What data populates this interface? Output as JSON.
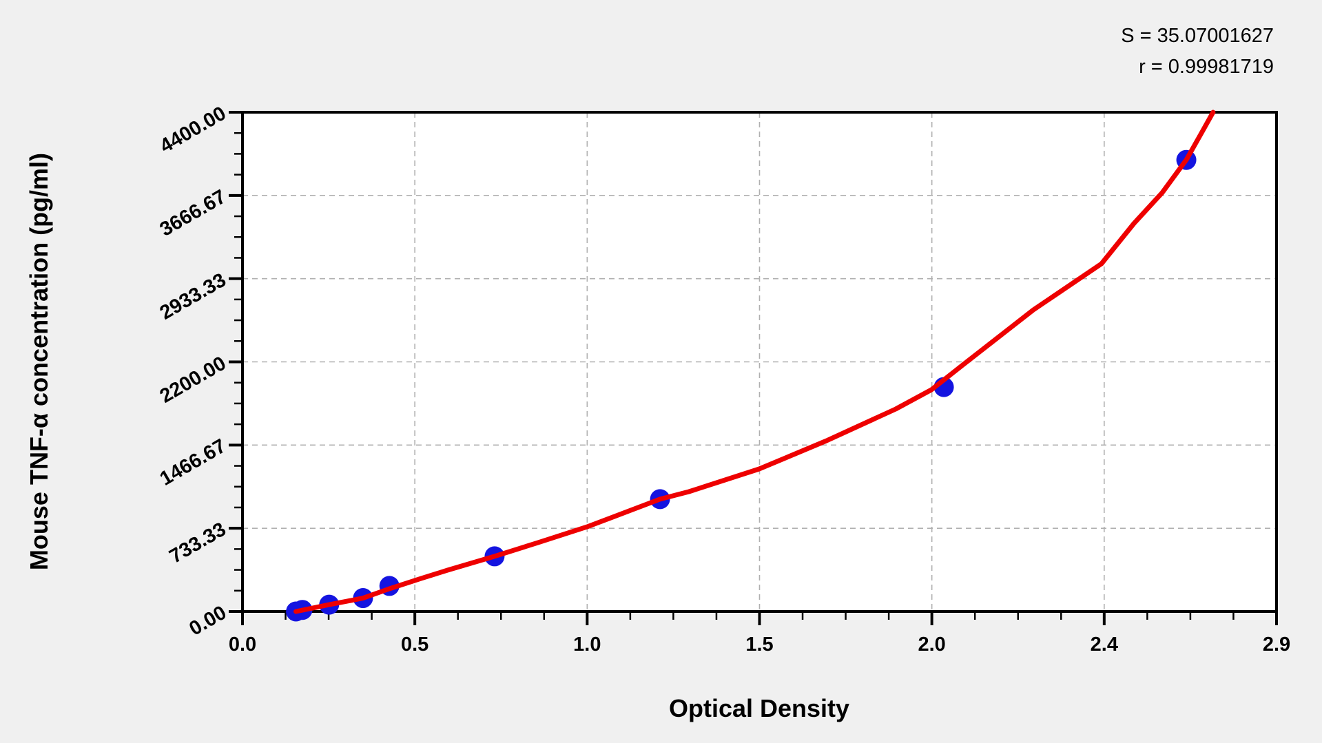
{
  "chart_data": {
    "type": "scatter",
    "title": "",
    "xlabel": "Optical Density",
    "ylabel": "Mouse TNF-α concentration (pg/ml)",
    "xlim": [
      0,
      2.9
    ],
    "ylim": [
      0,
      4400
    ],
    "x_tick_labels": [
      "0.0",
      "0.5",
      "1.0",
      "1.5",
      "2.0",
      "2.4",
      "2.9"
    ],
    "y_tick_labels": [
      "0.00",
      "733.33",
      "1466.67",
      "2200.00",
      "2933.33",
      "3666.67",
      "4400.00"
    ],
    "minor_ticks_per_interval": 3,
    "grid": "major-dashed",
    "legend": "none",
    "annotation": {
      "line1": "S = 35.07001627",
      "line2": "r = 0.99981719"
    },
    "series": [
      {
        "name": "standard-points",
        "type": "scatter",
        "color": "#1414e0",
        "marker_radius": 14.5,
        "points": [
          {
            "od": 0.15,
            "conc": 0
          },
          {
            "od": 0.168,
            "conc": 14
          },
          {
            "od": 0.243,
            "conc": 60
          },
          {
            "od": 0.338,
            "conc": 118
          },
          {
            "od": 0.412,
            "conc": 225
          },
          {
            "od": 0.707,
            "conc": 486
          },
          {
            "od": 1.171,
            "conc": 990
          },
          {
            "od": 1.967,
            "conc": 1978
          },
          {
            "od": 2.647,
            "conc": 3980
          }
        ]
      },
      {
        "name": "fitted-curve",
        "type": "line",
        "color": "#ee0000",
        "line_width": 7,
        "points": [
          [
            0.15,
            0
          ],
          [
            0.243,
            60
          ],
          [
            0.338,
            118
          ],
          [
            0.412,
            200
          ],
          [
            0.5,
            290
          ],
          [
            0.576,
            365
          ],
          [
            0.707,
            486
          ],
          [
            0.827,
            605
          ],
          [
            0.966,
            746
          ],
          [
            1.171,
            990
          ],
          [
            1.252,
            1056
          ],
          [
            1.449,
            1256
          ],
          [
            1.638,
            1505
          ],
          [
            1.832,
            1784
          ],
          [
            1.932,
            1954
          ],
          [
            2.025,
            2185
          ],
          [
            2.218,
            2658
          ],
          [
            2.409,
            3065
          ],
          [
            2.5,
            3420
          ],
          [
            2.579,
            3690
          ],
          [
            2.647,
            3981
          ],
          [
            2.69,
            4220
          ],
          [
            2.722,
            4400
          ]
        ]
      }
    ],
    "colors": {
      "page_bg": "#f0f0f0",
      "plot_bg": "#ffffff",
      "axis": "#000000",
      "grid": "#b0b0b0",
      "curve": "#ee0000",
      "points": "#1414e0",
      "text": "#000000"
    }
  }
}
